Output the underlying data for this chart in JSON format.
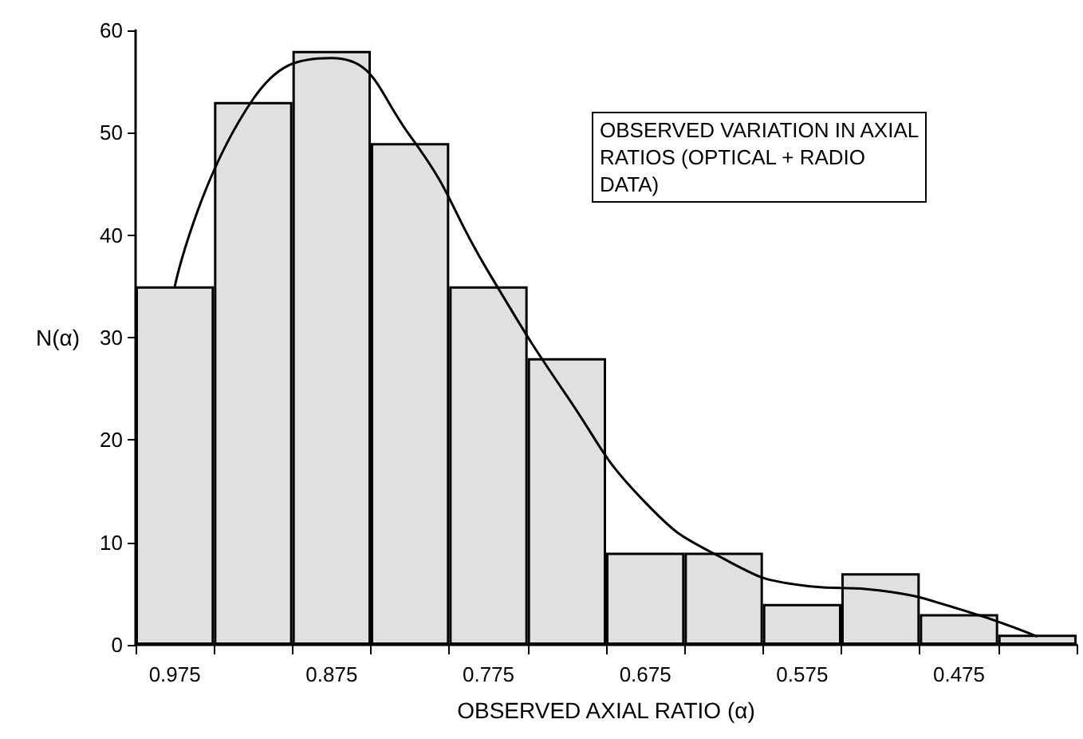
{
  "chart_data": {
    "type": "bar",
    "xlabel": "OBSERVED AXIAL RATIO (α)",
    "ylabel": "N(α)",
    "categories": [
      "0.975",
      null,
      "0.875",
      null,
      "0.775",
      null,
      "0.675",
      null,
      "0.575",
      null,
      "0.475",
      null
    ],
    "series": [
      {
        "color": "#e0e0e0",
        "values": [
          35,
          53,
          58,
          49,
          35,
          28,
          9,
          9,
          4,
          7,
          3,
          1
        ]
      },
      {
        "type": "line",
        "color": "#000000",
        "values": [
          35,
          53.3,
          57.3,
          49.7,
          36.4,
          24.3,
          13.9,
          8.4,
          5.8,
          5.3,
          3.5,
          0.8
        ],
        "marker": "none"
      }
    ],
    "ylim": [
      0,
      60
    ],
    "yticks": [
      0,
      10,
      20,
      30,
      40,
      50,
      60
    ],
    "grid": false,
    "annotations": [
      "OBSERVED VARIATION IN AXIAL RATIOS (OPTICAL + RADIO DATA)"
    ]
  }
}
